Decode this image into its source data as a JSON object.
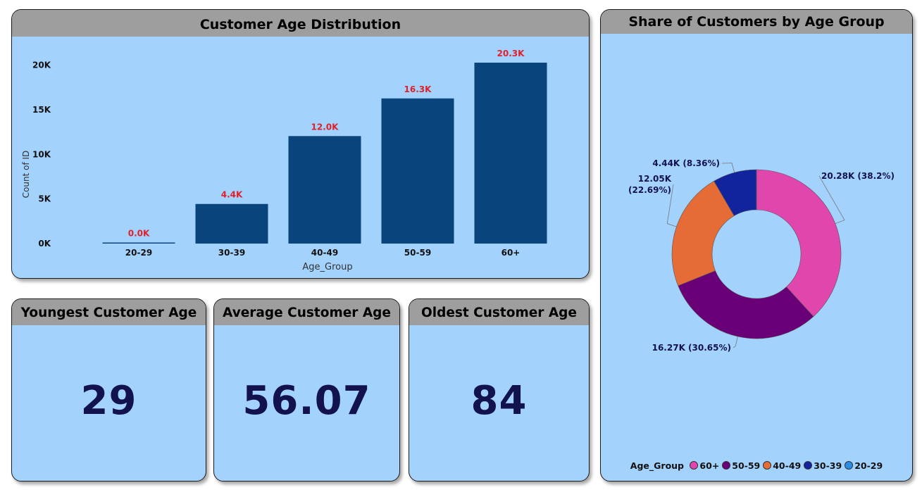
{
  "bar_card": {
    "title": "Customer Age Distribution"
  },
  "donut_card": {
    "title": "Share of Customers by Age Group"
  },
  "kpis": {
    "youngest": {
      "title": "Youngest Customer Age",
      "value": "29"
    },
    "average": {
      "title": "Average Customer Age",
      "value": "56.07"
    },
    "oldest": {
      "title": "Oldest Customer Age",
      "value": "84"
    }
  },
  "chart_data": [
    {
      "type": "bar",
      "xlabel": "Age_Group",
      "ylabel": "Count of ID",
      "categories": [
        "20-29",
        "30-39",
        "40-49",
        "50-59",
        "60+"
      ],
      "values": [
        10,
        4440,
        12050,
        16270,
        20280
      ],
      "data_labels": [
        "0.0K",
        "4.4K",
        "12.0K",
        "16.3K",
        "20.3K"
      ],
      "yticks": [
        0,
        5000,
        10000,
        15000,
        20000
      ],
      "ytick_labels": [
        "0K",
        "5K",
        "10K",
        "15K",
        "20K"
      ],
      "ylim": [
        0,
        20280
      ],
      "bar_color": "#0a447c",
      "label_color": "#e0202a"
    },
    {
      "type": "pie",
      "variant": "donut",
      "legend_title": "Age_Group",
      "legend_position": "bottom",
      "slices": [
        {
          "label": "60+",
          "value": 20280,
          "percent": 38.2,
          "data_label": "20.28K (38.2%)",
          "color": "#e046ac"
        },
        {
          "label": "50-59",
          "value": 16270,
          "percent": 30.65,
          "data_label": "16.27K (30.65%)",
          "color": "#6a0078"
        },
        {
          "label": "40-49",
          "value": 12050,
          "percent": 22.69,
          "data_label": "12.05K (22.69%)",
          "color": "#e66c37"
        },
        {
          "label": "30-39",
          "value": 4440,
          "percent": 8.36,
          "data_label": "4.44K (8.36%)",
          "color": "#12239e"
        },
        {
          "label": "20-29",
          "value": 10,
          "percent": 0.02,
          "data_label": "",
          "color": "#2c8ce6"
        }
      ]
    }
  ]
}
